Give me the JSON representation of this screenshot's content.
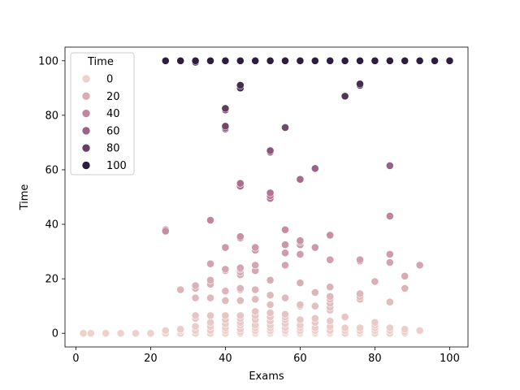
{
  "chart_data": {
    "type": "scatter",
    "title": "",
    "xlabel": "Exams",
    "ylabel": "Time",
    "xlim": [
      -2.9,
      104.9
    ],
    "ylim": [
      -5,
      105
    ],
    "xticks": [
      0,
      20,
      40,
      60,
      80,
      100
    ],
    "yticks": [
      0,
      20,
      40,
      60,
      80,
      100
    ],
    "grid": false,
    "hue": "Time",
    "hue_range": [
      0,
      100
    ],
    "palette": {
      "low": "#edd1cb",
      "high": "#2d1e3e"
    },
    "legend": {
      "title": "Time",
      "placement": "top-left",
      "entries": [
        {
          "label": "0",
          "value": 0
        },
        {
          "label": "20",
          "value": 20
        },
        {
          "label": "40",
          "value": 40
        },
        {
          "label": "60",
          "value": 60
        },
        {
          "label": "80",
          "value": 80
        },
        {
          "label": "100",
          "value": 100
        }
      ]
    },
    "points": [
      [
        2,
        0
      ],
      [
        4,
        0
      ],
      [
        8,
        0
      ],
      [
        12,
        0
      ],
      [
        16,
        0
      ],
      [
        20,
        0
      ],
      [
        24,
        0
      ],
      [
        24,
        1
      ],
      [
        24,
        38
      ],
      [
        24,
        37.5
      ],
      [
        24,
        100
      ],
      [
        28,
        0
      ],
      [
        28,
        1
      ],
      [
        28,
        1.5
      ],
      [
        28,
        16
      ],
      [
        28,
        100
      ],
      [
        32,
        0
      ],
      [
        32,
        1
      ],
      [
        32,
        2.5
      ],
      [
        32,
        5.5
      ],
      [
        32,
        6.5
      ],
      [
        32,
        13
      ],
      [
        32,
        16.5
      ],
      [
        32,
        17.5
      ],
      [
        32,
        99.5
      ],
      [
        32,
        100
      ],
      [
        36,
        0
      ],
      [
        36,
        1
      ],
      [
        36,
        2.5
      ],
      [
        36,
        4
      ],
      [
        36,
        6.5
      ],
      [
        36,
        13
      ],
      [
        36,
        18
      ],
      [
        36,
        19.5
      ],
      [
        36,
        25.5
      ],
      [
        36,
        41.5
      ],
      [
        36,
        100
      ],
      [
        40,
        0
      ],
      [
        40,
        1
      ],
      [
        40,
        2
      ],
      [
        40,
        3.5
      ],
      [
        40,
        5
      ],
      [
        40,
        6.5
      ],
      [
        40,
        12
      ],
      [
        40,
        15.5
      ],
      [
        40,
        23
      ],
      [
        40,
        23.5
      ],
      [
        40,
        31.5
      ],
      [
        40,
        75
      ],
      [
        40,
        75.5
      ],
      [
        40,
        76
      ],
      [
        40,
        82
      ],
      [
        40,
        82.5
      ],
      [
        40,
        100
      ],
      [
        44,
        0
      ],
      [
        44,
        0.5
      ],
      [
        44,
        1.5
      ],
      [
        44,
        3
      ],
      [
        44,
        4
      ],
      [
        44,
        5.5
      ],
      [
        44,
        6.5
      ],
      [
        44,
        12
      ],
      [
        44,
        16
      ],
      [
        44,
        16.5
      ],
      [
        44,
        21.5
      ],
      [
        44,
        22.5
      ],
      [
        44,
        23.5
      ],
      [
        44,
        24
      ],
      [
        44,
        35
      ],
      [
        44,
        35.5
      ],
      [
        44,
        54
      ],
      [
        44,
        55
      ],
      [
        44,
        90
      ],
      [
        44,
        91
      ],
      [
        44,
        100
      ],
      [
        48,
        0
      ],
      [
        48,
        0.5
      ],
      [
        48,
        1
      ],
      [
        48,
        2
      ],
      [
        48,
        3
      ],
      [
        48,
        5
      ],
      [
        48,
        6.5
      ],
      [
        48,
        8
      ],
      [
        48,
        12.5
      ],
      [
        48,
        16
      ],
      [
        48,
        23
      ],
      [
        48,
        25
      ],
      [
        48,
        30.5
      ],
      [
        48,
        31.5
      ],
      [
        48,
        100
      ],
      [
        52,
        0
      ],
      [
        52,
        0.5
      ],
      [
        52,
        1
      ],
      [
        52,
        2
      ],
      [
        52,
        3
      ],
      [
        52,
        4.5
      ],
      [
        52,
        6
      ],
      [
        52,
        7.5
      ],
      [
        52,
        10.5
      ],
      [
        52,
        14
      ],
      [
        52,
        19.5
      ],
      [
        52,
        49.5
      ],
      [
        52,
        50.5
      ],
      [
        52,
        51.5
      ],
      [
        52,
        66.5
      ],
      [
        52,
        67
      ],
      [
        52,
        100
      ],
      [
        56,
        0
      ],
      [
        56,
        0.5
      ],
      [
        56,
        1
      ],
      [
        56,
        2
      ],
      [
        56,
        3.5
      ],
      [
        56,
        5
      ],
      [
        56,
        6
      ],
      [
        56,
        7
      ],
      [
        56,
        13
      ],
      [
        56,
        25
      ],
      [
        56,
        29.5
      ],
      [
        56,
        32.5
      ],
      [
        56,
        38
      ],
      [
        56,
        75.5
      ],
      [
        56,
        100
      ],
      [
        60,
        0
      ],
      [
        60,
        0.5
      ],
      [
        60,
        1
      ],
      [
        60,
        2
      ],
      [
        60,
        3
      ],
      [
        60,
        5
      ],
      [
        60,
        10
      ],
      [
        60,
        10.5
      ],
      [
        60,
        18.5
      ],
      [
        60,
        29
      ],
      [
        60,
        32.5
      ],
      [
        60,
        33.5
      ],
      [
        60,
        34
      ],
      [
        60,
        56.5
      ],
      [
        60,
        100
      ],
      [
        64,
        0
      ],
      [
        64,
        0.5
      ],
      [
        64,
        1
      ],
      [
        64,
        2
      ],
      [
        64,
        4
      ],
      [
        64,
        5.5
      ],
      [
        64,
        10
      ],
      [
        64,
        15
      ],
      [
        64,
        31.5
      ],
      [
        64,
        60.5
      ],
      [
        64,
        100
      ],
      [
        68,
        0
      ],
      [
        68,
        0.5
      ],
      [
        68,
        1
      ],
      [
        68,
        2.5
      ],
      [
        68,
        4.5
      ],
      [
        68,
        8.5
      ],
      [
        68,
        9.5
      ],
      [
        68,
        11
      ],
      [
        68,
        12.5
      ],
      [
        68,
        13.5
      ],
      [
        68,
        17
      ],
      [
        68,
        27
      ],
      [
        68,
        36
      ],
      [
        68,
        100
      ],
      [
        72,
        0
      ],
      [
        72,
        1
      ],
      [
        72,
        2
      ],
      [
        72,
        6
      ],
      [
        72,
        87
      ],
      [
        72,
        100
      ],
      [
        76,
        0
      ],
      [
        76,
        0.5
      ],
      [
        76,
        1
      ],
      [
        76,
        2
      ],
      [
        76,
        12.5
      ],
      [
        76,
        13.5
      ],
      [
        76,
        14.5
      ],
      [
        76,
        26.5
      ],
      [
        76,
        27
      ],
      [
        76,
        91
      ],
      [
        76,
        91.5
      ],
      [
        76,
        100
      ],
      [
        80,
        0
      ],
      [
        80,
        1
      ],
      [
        80,
        2
      ],
      [
        80,
        3
      ],
      [
        80,
        4
      ],
      [
        80,
        19
      ],
      [
        80,
        100
      ],
      [
        84,
        0
      ],
      [
        84,
        1
      ],
      [
        84,
        2
      ],
      [
        84,
        11.5
      ],
      [
        84,
        26
      ],
      [
        84,
        29
      ],
      [
        84,
        43
      ],
      [
        84,
        61.5
      ],
      [
        84,
        100
      ],
      [
        88,
        0
      ],
      [
        88,
        0.5
      ],
      [
        88,
        1.5
      ],
      [
        88,
        16.5
      ],
      [
        88,
        21
      ],
      [
        88,
        100
      ],
      [
        92,
        1
      ],
      [
        92,
        25
      ],
      [
        92,
        100
      ],
      [
        96,
        100
      ],
      [
        100,
        100
      ]
    ]
  }
}
